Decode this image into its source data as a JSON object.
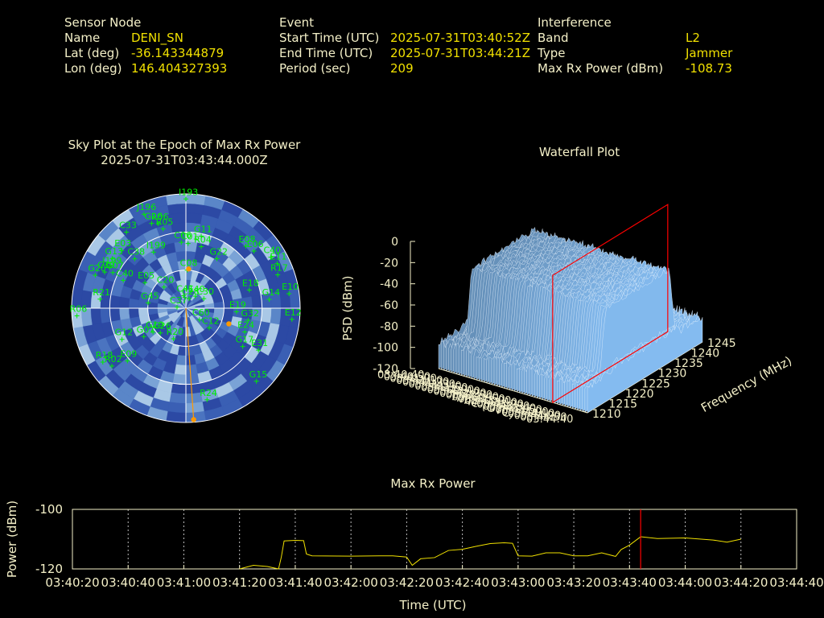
{
  "header": {
    "sensor": {
      "heading": "Sensor Node",
      "name_label": "Name",
      "name_value": "DENI_SN",
      "lat_label": "Lat (deg)",
      "lat_value": "-36.143344879",
      "lon_label": "Lon (deg)",
      "lon_value": "146.404327393"
    },
    "event": {
      "heading": "Event",
      "start_label": "Start Time (UTC)",
      "start_value": "2025-07-31T03:40:52Z",
      "end_label": "End Time (UTC)",
      "end_value": "2025-07-31T03:44:21Z",
      "period_label": "Period (sec)",
      "period_value": "209"
    },
    "interference": {
      "heading": "Interference",
      "band_label": "Band",
      "band_value": "L2",
      "type_label": "Type",
      "type_value": "Jammer",
      "maxrx_label": "Max Rx Power (dBm)",
      "maxrx_value": "-108.73"
    }
  },
  "colors": {
    "label": "#f4f0c8",
    "value": "#f0e000",
    "satellite": "#00ee00",
    "jammer": "#ff9900",
    "marker": "#ff0000",
    "sky_dark": "#2c49a4",
    "sky_mid": "#5a86c8",
    "sky_light": "#a9c8e6"
  },
  "chart_data": [
    {
      "type": "scatter",
      "title": "Sky Plot at the Epoch of Max Rx Power",
      "subtitle": "2025-07-31T03:43:44.000Z",
      "projection": "polar",
      "rings_elevation_deg": [
        0,
        30,
        60,
        90
      ],
      "satellites": [
        {
          "id": "I193",
          "az": 0,
          "el": 4
        },
        {
          "id": "C33",
          "az": -38,
          "el": 14
        },
        {
          "id": "G26",
          "az": -22,
          "el": 18
        },
        {
          "id": "J196",
          "az": -24,
          "el": 9
        },
        {
          "id": "R06",
          "az": -18,
          "el": 20
        },
        {
          "id": "R05",
          "az": -16,
          "el": 25
        },
        {
          "id": "G11",
          "az": 12,
          "el": 32
        },
        {
          "id": "C06",
          "az": -4,
          "el": 38
        },
        {
          "id": "C01",
          "az": 2,
          "el": 39
        },
        {
          "id": "R04",
          "az": 14,
          "el": 40
        },
        {
          "id": "E08",
          "az": 44,
          "el": 22
        },
        {
          "id": "E06",
          "az": 50,
          "el": 20
        },
        {
          "id": "C40",
          "az": 59,
          "el": 12
        },
        {
          "id": "E11",
          "az": 64,
          "el": 10
        },
        {
          "id": "R17",
          "az": 70,
          "el": 13
        },
        {
          "id": "E10",
          "az": 82,
          "el": 8
        },
        {
          "id": "G13",
          "az": -56,
          "el": 20
        },
        {
          "id": "E03",
          "az": -48,
          "el": 22
        },
        {
          "id": "I199",
          "az": -30,
          "el": 39
        },
        {
          "id": "C38",
          "az": -46,
          "el": 34
        },
        {
          "id": "J199",
          "az": -62,
          "el": 22
        },
        {
          "id": "C39",
          "az": -66,
          "el": 20
        },
        {
          "id": "G20",
          "az": -70,
          "el": 14
        },
        {
          "id": "G07",
          "az": -64,
          "el": 26
        },
        {
          "id": "C40",
          "az": -66,
          "el": 36
        },
        {
          "id": "C08",
          "az": 2,
          "el": 60
        },
        {
          "id": "E05",
          "az": -58,
          "el": 52
        },
        {
          "id": "G22",
          "az": 32,
          "el": 44
        },
        {
          "id": "E18",
          "az": 74,
          "el": 38
        },
        {
          "id": "G14",
          "az": 84,
          "el": 24
        },
        {
          "id": "E12",
          "az": 96,
          "el": 6
        },
        {
          "id": "G32",
          "az": 101,
          "el": 40
        },
        {
          "id": "E19",
          "az": 94,
          "el": 50
        },
        {
          "id": "C30",
          "az": 62,
          "el": 74
        },
        {
          "id": "E40",
          "az": 38,
          "el": 78
        },
        {
          "id": "C28",
          "az": 18,
          "el": 82
        },
        {
          "id": "C20",
          "az": -46,
          "el": 66
        },
        {
          "id": "C41",
          "az": -10,
          "el": 80
        },
        {
          "id": "C37",
          "az": -84,
          "el": 83
        },
        {
          "id": "G45",
          "az": -82,
          "el": 60
        },
        {
          "id": "R21",
          "az": -84,
          "el": 22
        },
        {
          "id": "R06",
          "az": -94,
          "el": 4
        },
        {
          "id": "G07",
          "az": -124,
          "el": 50
        },
        {
          "id": "G26",
          "az": -134,
          "el": 62
        },
        {
          "id": "G19",
          "az": -126,
          "el": 58
        },
        {
          "id": "G12",
          "az": -116,
          "el": 34
        },
        {
          "id": "R20",
          "az": -158,
          "el": 64
        },
        {
          "id": "E09",
          "az": -132,
          "el": 28
        },
        {
          "id": "R18",
          "az": -123,
          "el": 12
        },
        {
          "id": "R02",
          "az": -128,
          "el": 16
        },
        {
          "id": "C60",
          "az": 130,
          "el": 76
        },
        {
          "id": "C12",
          "az": 130,
          "el": 66
        },
        {
          "id": "E24",
          "az": 112,
          "el": 40
        },
        {
          "id": "G17",
          "az": 124,
          "el": 36
        },
        {
          "id": "E31",
          "az": 120,
          "el": 24
        },
        {
          "id": "G15",
          "az": 136,
          "el": 10
        },
        {
          "id": "R24",
          "az": 167,
          "el": 16
        }
      ],
      "jammer_points": [
        {
          "az": 4,
          "el": 59
        },
        {
          "az": 110,
          "el": 54
        },
        {
          "az": 176,
          "el": 2
        }
      ]
    },
    {
      "type": "area",
      "title": "Waterfall Plot",
      "xlabel": "Time (UTC)",
      "ylabel": "Frequency (MHz)",
      "zlabel": "PSD (dBm)",
      "z_ticks": [
        0,
        -20,
        -40,
        -60,
        -80,
        -100,
        -120
      ],
      "frequency_ticks": [
        1210,
        1215,
        1220,
        1225,
        1230,
        1235,
        1240,
        1245
      ],
      "time_ticks": [
        "03:40:40",
        "03:40:50",
        "03:41:00",
        "03:41:10",
        "03:41:20",
        "03:41:30",
        "03:41:40",
        "03:41:50",
        "03:42:00",
        "03:42:10",
        "03:42:20",
        "03:42:30",
        "03:42:40",
        "03:42:50",
        "03:43:00",
        "03:43:10",
        "03:43:20",
        "03:43:30",
        "03:43:40",
        "03:43:50",
        "03:44:00",
        "03:44:10",
        "03:44:20",
        "03:44:30",
        "03:44:40"
      ],
      "plateau_level_dbm": -38,
      "noise_floor_dbm": -100,
      "plateau_freq_mhz": [
        1216,
        1239
      ],
      "marker_time": "03:43:44"
    },
    {
      "type": "line",
      "title": "Max Rx Power",
      "xlabel": "Time (UTC)",
      "ylabel": "Power (dBm)",
      "ylim": [
        -120,
        -100
      ],
      "x_ticks": [
        "03:40:20",
        "03:40:40",
        "03:41:00",
        "03:41:20",
        "03:41:40",
        "03:42:00",
        "03:42:20",
        "03:42:40",
        "03:43:00",
        "03:43:20",
        "03:43:40",
        "03:44:00",
        "03:44:20",
        "03:44:40"
      ],
      "series": [
        {
          "x": [
            "03:41:20",
            "03:41:25",
            "03:41:30",
            "03:41:34",
            "03:41:35",
            "03:41:36",
            "03:41:40",
            "03:41:43",
            "03:41:44",
            "03:41:46",
            "03:42:00",
            "03:42:10",
            "03:42:15",
            "03:42:20",
            "03:42:22",
            "03:42:25",
            "03:42:30",
            "03:42:35",
            "03:42:40",
            "03:42:45",
            "03:42:50",
            "03:42:55",
            "03:42:58",
            "03:43:00",
            "03:43:05",
            "03:43:10",
            "03:43:15",
            "03:43:20",
            "03:43:25",
            "03:43:30",
            "03:43:35",
            "03:43:37",
            "03:43:40",
            "03:43:44",
            "03:43:50",
            "03:44:00",
            "03:44:10",
            "03:44:15",
            "03:44:20"
          ],
          "y": [
            -120,
            -118.8,
            -119.2,
            -120,
            -116,
            -110.6,
            -110.4,
            -110.5,
            -115,
            -115.6,
            -115.7,
            -115.6,
            -115.6,
            -116,
            -118.8,
            -116.6,
            -116.2,
            -113.8,
            -113.4,
            -112.4,
            -111.5,
            -111.2,
            -111.4,
            -115.6,
            -115.7,
            -114.6,
            -114.6,
            -115.6,
            -115.6,
            -114.6,
            -115.8,
            -113.5,
            -112,
            -109.2,
            -109.8,
            -109.6,
            -110.3,
            -111,
            -110
          ]
        }
      ],
      "marker_time": "03:43:44"
    }
  ]
}
